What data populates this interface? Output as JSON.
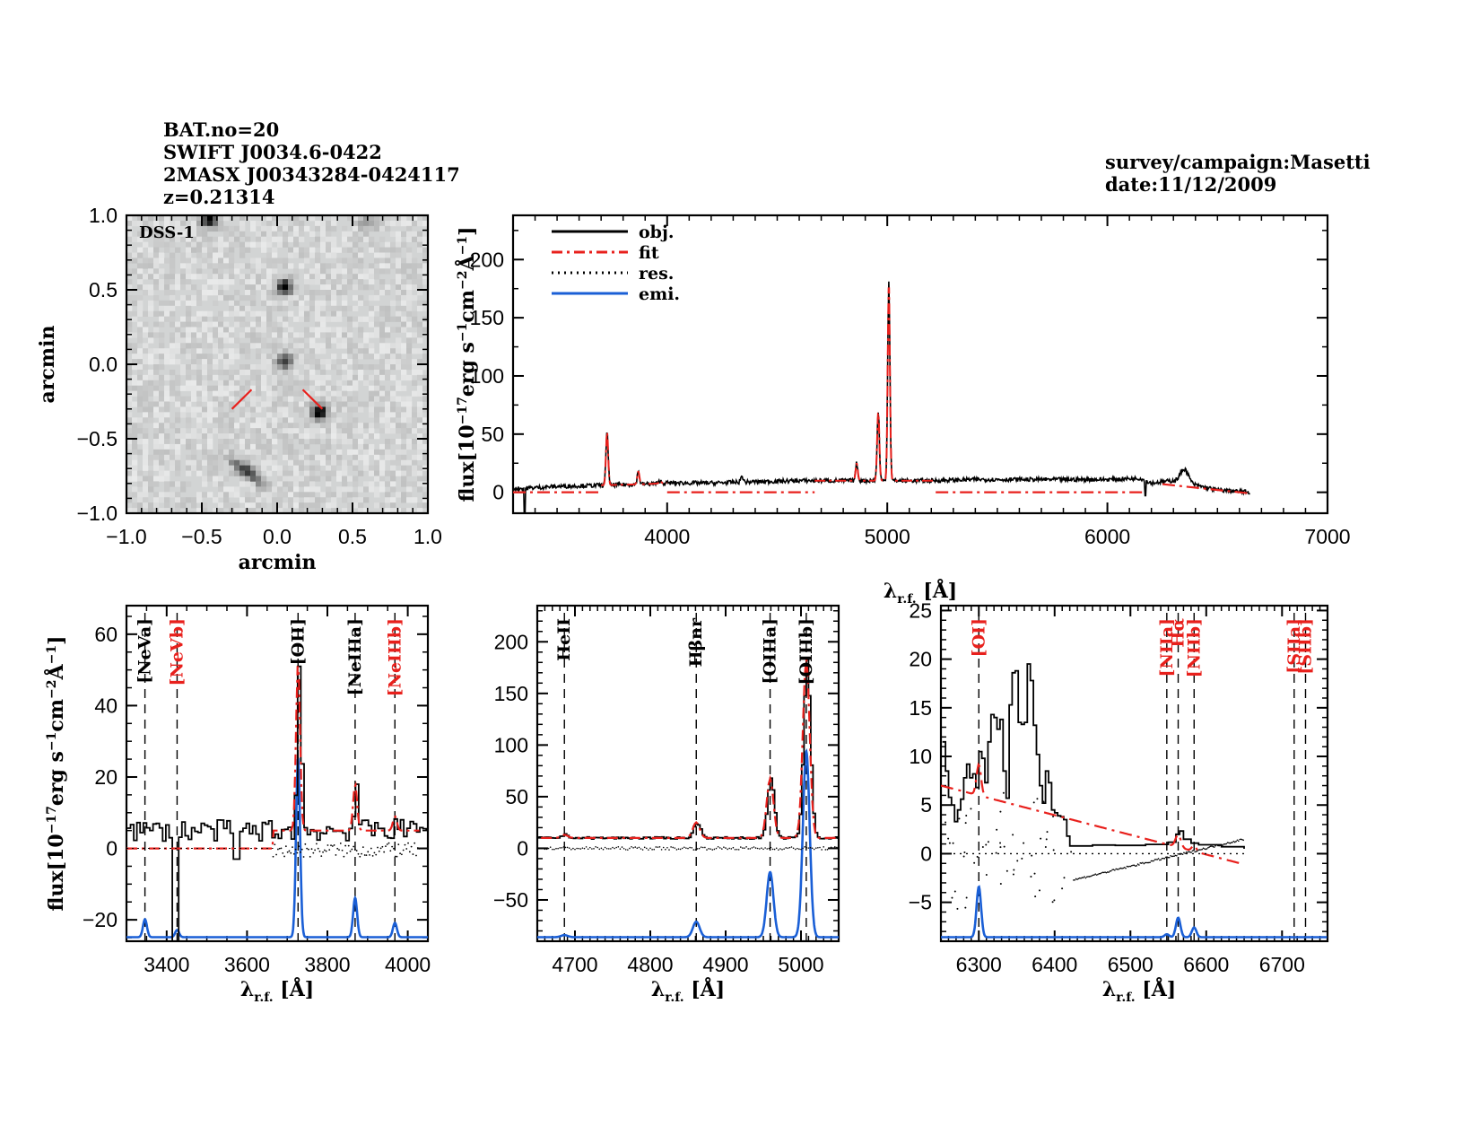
{
  "header": {
    "left_lines": [
      "BAT.no=20",
      "SWIFT J0034.6-0422",
      "2MASX J00343284-0424117",
      "z=0.21314"
    ],
    "right_lines": [
      "survey/campaign:Masetti",
      "date:11/12/2009"
    ]
  },
  "colors": {
    "obj": "#000000",
    "fit": "#e8201c",
    "res": "#000000",
    "emi": "#1a5fd6",
    "image_bg": "#d2d4d4"
  },
  "chart_data": [
    {
      "id": "dss-image",
      "type": "heatmap",
      "title": "DSS-1",
      "xlabel": "arcmin",
      "ylabel": "arcmin",
      "xlim": [
        -1.0,
        1.0
      ],
      "ylim": [
        -1.0,
        1.0
      ],
      "xticks": [
        "-1.0",
        "-0.5",
        "0.0",
        "0.5",
        "1.0"
      ],
      "yticks": [
        "1.0",
        "0.5",
        "0.0",
        "-0.5",
        "-1.0"
      ],
      "sources": [
        {
          "x": -0.45,
          "y": 0.97,
          "strength": 0.9
        },
        {
          "x": 0.05,
          "y": 0.52,
          "strength": 0.9
        },
        {
          "x": 0.05,
          "y": 0.02,
          "strength": 0.6
        },
        {
          "x": 0.28,
          "y": -0.32,
          "strength": 1.0
        },
        {
          "x": -0.2,
          "y": -0.72,
          "strength": 0.7,
          "elongated": true
        },
        {
          "x": 0.6,
          "y": 0.95,
          "strength": 0.3
        }
      ],
      "markers": [
        {
          "x1": -0.3,
          "y1": -0.3,
          "x2": -0.17,
          "y2": -0.17
        },
        {
          "x1": 0.17,
          "y1": -0.17,
          "x2": 0.3,
          "y2": -0.3
        }
      ]
    },
    {
      "id": "full-spectrum",
      "type": "line",
      "xlabel": "λr.f. [Å]",
      "ylabel": "flux[10^-17 erg s^-1 cm^-2 Å^-1]",
      "xlim": [
        3300,
        7000
      ],
      "ylim": [
        -18,
        238
      ],
      "xticks": [
        "4000",
        "5000",
        "6000",
        "7000"
      ],
      "yticks": [
        "0",
        "50",
        "100",
        "150",
        "200"
      ],
      "legend": {
        "placement": "top-left",
        "entries": [
          "obj.",
          "fit",
          "res.",
          "emi."
        ]
      },
      "continuum": {
        "x": [
          3300,
          3500,
          3700,
          3900,
          4000,
          4200,
          4400,
          4600,
          4800,
          5000,
          5200,
          5400,
          5600,
          5800,
          6000,
          6150,
          6200,
          6300,
          6400,
          6500,
          6650
        ],
        "y": [
          3,
          5,
          6,
          7,
          8,
          8,
          9,
          10,
          10,
          10,
          10,
          11,
          11,
          11,
          11,
          12,
          8,
          10,
          6,
          2,
          0
        ]
      },
      "lines": [
        {
          "x": 3727,
          "peak": 53
        },
        {
          "x": 3869,
          "peak": 18
        },
        {
          "x": 3968,
          "peak": 10
        },
        {
          "x": 4340,
          "peak": 14
        },
        {
          "x": 4861,
          "peak": 25
        },
        {
          "x": 4959,
          "peak": 70
        },
        {
          "x": 5007,
          "peak": 182
        },
        {
          "x": 6350,
          "peak": 20
        }
      ],
      "fit_segments": [
        {
          "x": [
            3300,
            3700
          ],
          "y": [
            0,
            0
          ]
        },
        {
          "x": [
            4000,
            4670
          ],
          "y": [
            0,
            0
          ]
        },
        {
          "x": [
            5220,
            6170
          ],
          "y": [
            0,
            0
          ]
        },
        {
          "x": [
            6250,
            6650
          ],
          "y": [
            7,
            -1
          ]
        }
      ]
    },
    {
      "id": "zoom-OII",
      "type": "line",
      "xlabel": "λr.f. [Å]",
      "ylabel": "flux[10^-17 erg s^-1 cm^-2 Å^-1]",
      "xlim": [
        3300,
        4050
      ],
      "ylim": [
        -26,
        68
      ],
      "xticks": [
        "3400",
        "3600",
        "3800",
        "4000"
      ],
      "yticks": [
        "-20",
        "0",
        "20",
        "40",
        "60"
      ],
      "emission_lines": [
        {
          "label": "[NeVa]",
          "x": 3346,
          "color": "black",
          "emi_peak": 5
        },
        {
          "label": "[NeVb]",
          "x": 3426,
          "color": "red",
          "emi_peak": 2
        },
        {
          "label": "[OII]",
          "x": 3727,
          "color": "black",
          "emi_peak": 50,
          "obj_peak": 52
        },
        {
          "label": "[NeIIIa]",
          "x": 3869,
          "color": "black",
          "emi_peak": 11,
          "obj_peak": 18
        },
        {
          "label": "[NeIIIb]",
          "x": 3968,
          "color": "red",
          "emi_peak": 4,
          "obj_peak": 9
        }
      ],
      "continuum_level": 5
    },
    {
      "id": "zoom-OIII",
      "type": "line",
      "xlabel": "λr.f. [Å]",
      "ylabel": "",
      "xlim": [
        4650,
        5050
      ],
      "ylim": [
        -90,
        235
      ],
      "xticks": [
        "4700",
        "4800",
        "4900",
        "5000"
      ],
      "yticks": [
        "-50",
        "0",
        "50",
        "100",
        "150",
        "200"
      ],
      "emission_lines": [
        {
          "label": "HeII",
          "x": 4686,
          "color": "black",
          "emi_peak": 2,
          "obj_peak": 13
        },
        {
          "label": "Hβnr",
          "x": 4861,
          "color": "black",
          "emi_peak": 15,
          "obj_peak": 25
        },
        {
          "label": "[OIIIa]",
          "x": 4959,
          "color": "black",
          "emi_peak": 63,
          "obj_peak": 67
        },
        {
          "label": "[OIIIb]",
          "x": 5007,
          "color": "black",
          "emi_peak": 180,
          "obj_peak": 182
        }
      ],
      "continuum_level": 10
    },
    {
      "id": "zoom-Halpha",
      "type": "line",
      "xlabel": "λr.f. [Å]",
      "ylabel": "",
      "xlim": [
        6250,
        6760
      ],
      "ylim": [
        -9,
        25.5
      ],
      "xticks": [
        "6300",
        "6400",
        "6500",
        "6600",
        "6700"
      ],
      "yticks": [
        "-5",
        "0",
        "5",
        "10",
        "15",
        "20",
        "25"
      ],
      "emission_lines": [
        {
          "label": "[OI]",
          "x": 6300,
          "color": "red",
          "emi_peak": 5.2
        },
        {
          "label": "[NIIa]",
          "x": 6548,
          "color": "red",
          "emi_peak": 0.3
        },
        {
          "label": "Hα",
          "x": 6563,
          "color": "red",
          "emi_peak": 2
        },
        {
          "label": "[NIIb]",
          "x": 6584,
          "color": "red",
          "emi_peak": 1
        },
        {
          "label": "[SIIa]",
          "x": 6716,
          "color": "red",
          "emi_peak": 0
        },
        {
          "label": "[SIIb]",
          "x": 6731,
          "color": "red",
          "emi_peak": 0
        }
      ],
      "obj_steps": {
        "x": [
          6252,
          6256,
          6260,
          6264,
          6268,
          6272,
          6276,
          6280,
          6284,
          6288,
          6292,
          6296,
          6300,
          6304,
          6308,
          6312,
          6316,
          6320,
          6324,
          6328,
          6332,
          6336,
          6340,
          6344,
          6348,
          6352,
          6356,
          6360,
          6364,
          6368,
          6372,
          6376,
          6380,
          6384,
          6388,
          6392,
          6396,
          6400,
          6404,
          6408,
          6412,
          6416,
          6420,
          6424,
          6430,
          6450,
          6480,
          6520,
          6550,
          6560,
          6565,
          6570,
          6580,
          6590,
          6620,
          6650
        ],
        "y": [
          11.5,
          8.5,
          5.8,
          5.0,
          3.3,
          4.5,
          5.6,
          7.8,
          9.2,
          7.8,
          8.2,
          6.8,
          10.5,
          9.8,
          7.3,
          11.5,
          14.3,
          14.0,
          12.8,
          13.8,
          8.5,
          5.7,
          15.3,
          18.6,
          18.8,
          13.5,
          13.3,
          13.5,
          19.5,
          17.8,
          13.2,
          10.2,
          7.0,
          5.2,
          8.5,
          7.3,
          4.5,
          4.2,
          3.9,
          3.8,
          3.5,
          1.8,
          0.8,
          0.8,
          0.8,
          0.8,
          0.9,
          0.9,
          1.3,
          2.0,
          2.4,
          1.5,
          1.2,
          1.0,
          0.6,
          0.5
        ]
      },
      "fit_line": {
        "x": [
          6250,
          6650
        ],
        "y": [
          7.0,
          -1.1
        ]
      },
      "residual_tail": {
        "x": [
          6425,
          6650
        ],
        "y": [
          -2.7,
          1.5
        ]
      }
    }
  ]
}
